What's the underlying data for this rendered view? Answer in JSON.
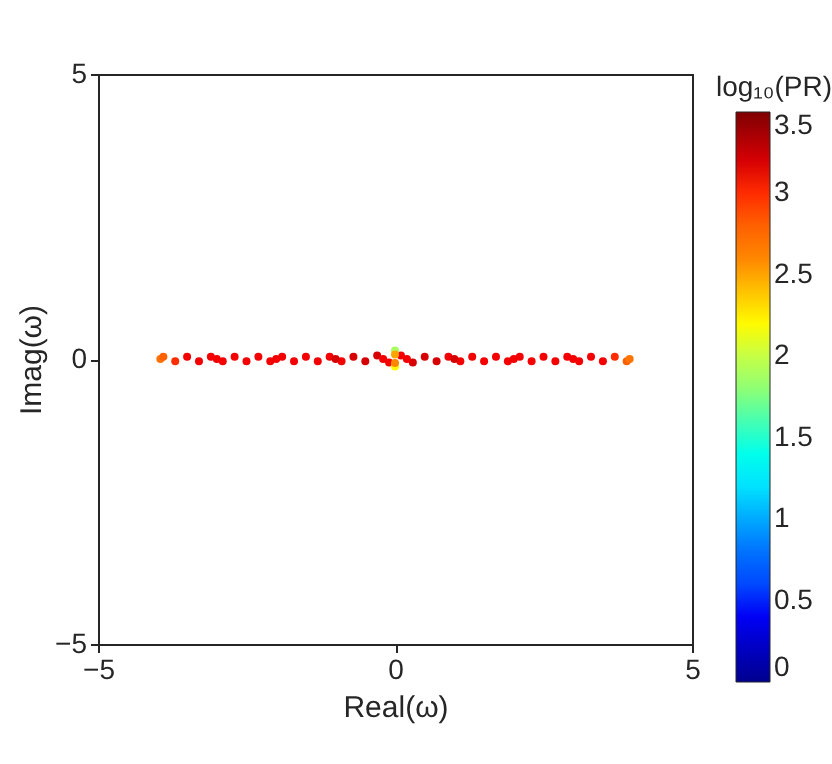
{
  "chart_data": {
    "type": "scatter",
    "xlabel": "Real(ω)",
    "ylabel": "Imag(ω)",
    "clabel": "log₁₀(PR)",
    "xlim": [
      -5,
      5
    ],
    "ylim": [
      -5,
      5
    ],
    "xticks": [
      -5,
      0,
      5
    ],
    "yticks": [
      -5,
      0,
      5
    ],
    "clim": [
      0,
      3.5
    ],
    "cticks": [
      0,
      0.5,
      1,
      1.5,
      2,
      2.5,
      3,
      3.5
    ],
    "grid": false,
    "marker": "circle",
    "x": [
      -3.95,
      -3.9,
      -3.7,
      -3.5,
      -3.3,
      -3.1,
      -2.9,
      -2.7,
      -2.5,
      -2.3,
      -2.1,
      -1.9,
      -1.7,
      -1.5,
      -1.3,
      -1.1,
      -0.9,
      -0.7,
      -0.5,
      -0.3,
      -0.1,
      0.1,
      0.3,
      0.5,
      0.7,
      0.9,
      1.1,
      1.3,
      1.5,
      1.7,
      1.9,
      2.1,
      2.3,
      2.5,
      2.7,
      2.9,
      3.1,
      3.3,
      3.5,
      3.7,
      3.9,
      3.95,
      0,
      0,
      0,
      0,
      -0.2,
      0.2,
      -1,
      1,
      -2,
      2,
      -3,
      3
    ],
    "values": [
      0,
      0.04,
      -0.04,
      0.04,
      -0.04,
      0.04,
      -0.04,
      0.04,
      -0.04,
      0.04,
      -0.04,
      0.04,
      -0.04,
      0.04,
      -0.04,
      0.04,
      -0.04,
      0.04,
      -0.04,
      0.06,
      -0.06,
      0.06,
      -0.06,
      0.04,
      -0.04,
      0.04,
      -0.04,
      0.04,
      -0.04,
      0.04,
      -0.04,
      0.04,
      -0.04,
      0.04,
      -0.04,
      0.04,
      -0.04,
      0.04,
      -0.04,
      0.04,
      -0.04,
      0,
      0.15,
      -0.13,
      0.08,
      -0.07,
      0,
      0,
      0,
      0,
      0,
      0,
      0,
      0
    ],
    "cvalues": [
      2.7,
      2.8,
      3,
      3.1,
      3.1,
      3.1,
      3.1,
      3.1,
      3.1,
      3.1,
      3.1,
      3.1,
      3.1,
      3.1,
      3.1,
      3.1,
      3.1,
      3.2,
      3.2,
      3.2,
      3.1,
      3.1,
      3.2,
      3.2,
      3.2,
      3.1,
      3.1,
      3.1,
      3.1,
      3.1,
      3.1,
      3.1,
      3.1,
      3.1,
      3.1,
      3.1,
      3.1,
      3.1,
      3.1,
      3,
      2.8,
      2.7,
      1.9,
      2.2,
      2.5,
      2.6,
      3.1,
      3.1,
      3.2,
      3.2,
      3.1,
      3.1,
      3.1,
      3.1
    ]
  }
}
